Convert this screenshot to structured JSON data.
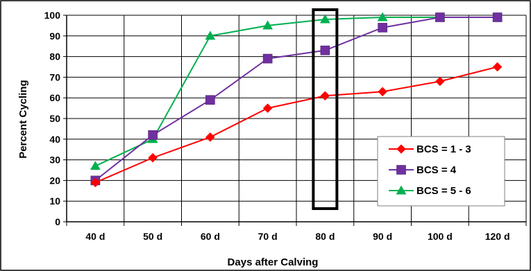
{
  "chart_data": {
    "type": "line",
    "title": "",
    "xlabel": "Days after Calving",
    "ylabel": "Percent Cycling",
    "categories": [
      "40 d",
      "50 d",
      "60 d",
      "70 d",
      "80 d",
      "90 d",
      "100 d",
      "120 d"
    ],
    "ylim": [
      0,
      100
    ],
    "yticks": [
      0,
      10,
      20,
      30,
      40,
      50,
      60,
      70,
      80,
      90,
      100
    ],
    "grid": "both",
    "legend_position": "bottom-right",
    "highlight_category": "80 d",
    "series": [
      {
        "name": "BCS = 1 - 3",
        "color": "#ff0000",
        "marker": "diamond",
        "values": [
          19,
          31,
          41,
          55,
          61,
          63,
          68,
          75
        ]
      },
      {
        "name": "BCS = 4",
        "color": "#7030a0",
        "marker": "square",
        "values": [
          20,
          42,
          59,
          79,
          83,
          94,
          99,
          99
        ]
      },
      {
        "name": "BCS = 5 - 6",
        "color": "#00b050",
        "marker": "triangle",
        "values": [
          27,
          40,
          90,
          95,
          98,
          99,
          99,
          99
        ]
      }
    ]
  }
}
